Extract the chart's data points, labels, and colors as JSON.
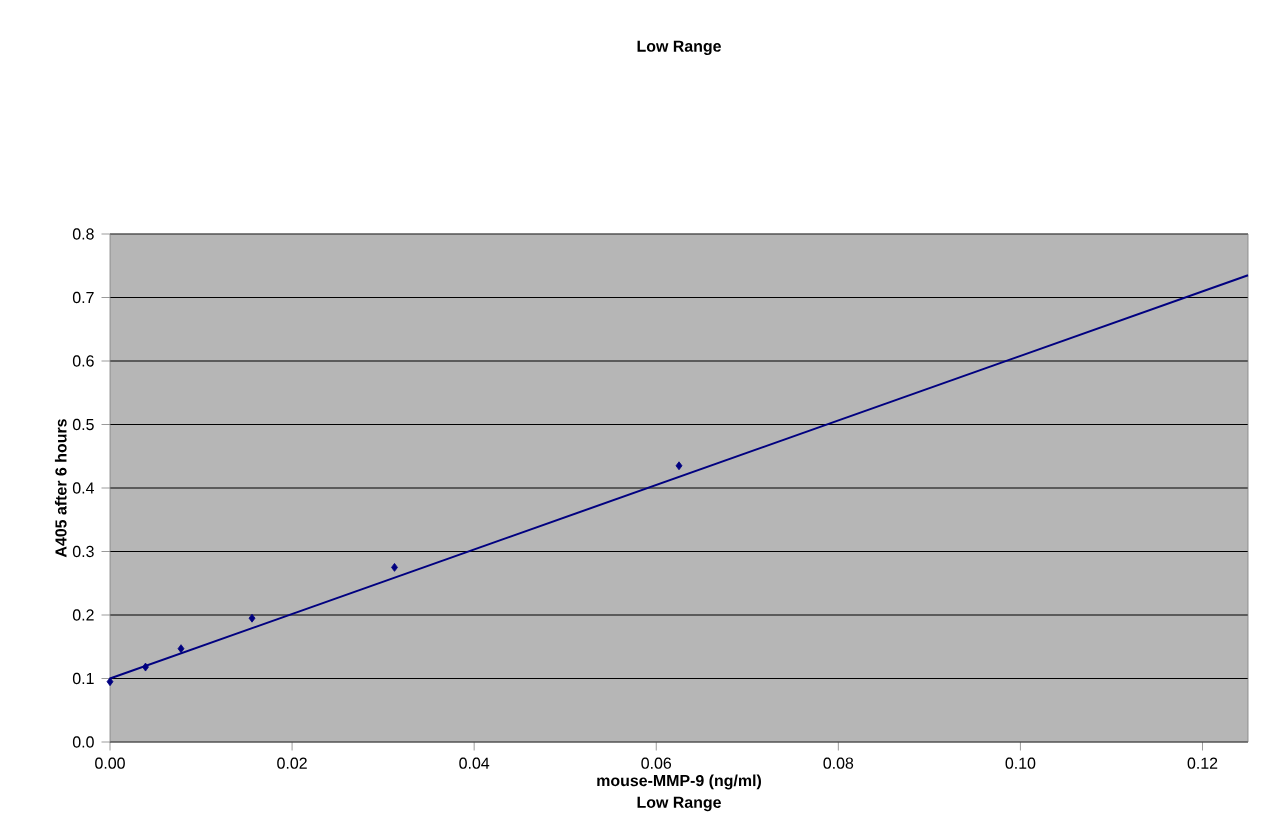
{
  "chart_data": {
    "type": "scatter",
    "title": "Low Range",
    "xlabel": "mouse-MMP-9 (ng/ml)",
    "ylabel": "A405 after 6 hours",
    "annotations": [
      "Low Range"
    ],
    "xlim": [
      0,
      0.125
    ],
    "ylim": [
      0,
      0.8
    ],
    "xticks": [
      {
        "value": 0,
        "label": "0.00"
      },
      {
        "value": 0.02,
        "label": "0.02"
      },
      {
        "value": 0.04,
        "label": "0.04"
      },
      {
        "value": 0.06,
        "label": "0.06"
      },
      {
        "value": 0.08,
        "label": "0.08"
      },
      {
        "value": 0.1,
        "label": "0.10"
      },
      {
        "value": 0.12,
        "label": "0.12"
      }
    ],
    "yticks": [
      {
        "value": 0,
        "label": "0.0"
      },
      0.1,
      0.2,
      0.3,
      0.4,
      0.5,
      0.6,
      0.7,
      0.8
    ],
    "grid": "y",
    "series": [
      {
        "type": "scatter",
        "color": "#000080",
        "marker": "diamond",
        "x": [
          0,
          0.0039,
          0.0078,
          0.0156,
          0.03125,
          0.0625
        ],
        "values": [
          0.095,
          0.118,
          0.147,
          0.195,
          0.275,
          0.435
        ]
      },
      {
        "type": "line",
        "color": "#000080",
        "marker": "none",
        "line_style": "solid",
        "x": [
          0,
          0.125
        ],
        "values": [
          0.1,
          0.735
        ]
      }
    ]
  }
}
